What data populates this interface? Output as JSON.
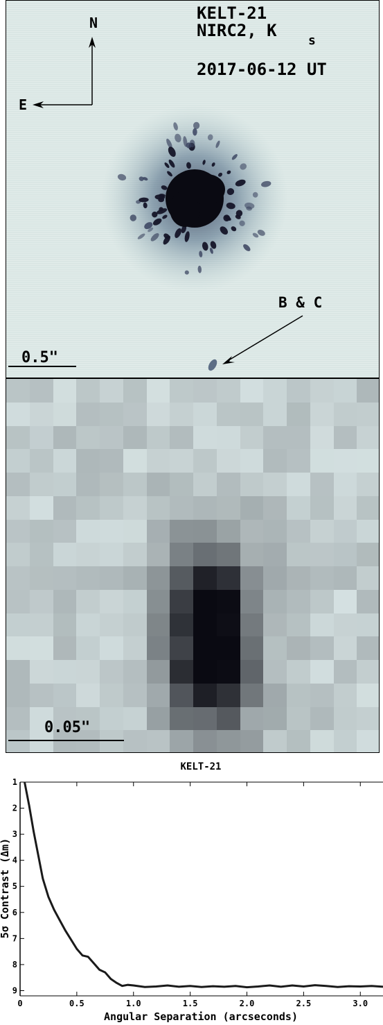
{
  "top_panel": {
    "target": "KELT-21",
    "instrument": "NIRC2, K",
    "filter_subscript": "s",
    "date": "2017-06-12 UT",
    "north": "N",
    "east": "E",
    "companion_label": "B & C",
    "scale_label": "0.5\""
  },
  "bottom_panel": {
    "scale_label": "0.05\""
  },
  "chart_data": {
    "type": "line",
    "title": "KELT-21",
    "xlabel": "Angular Separation (arcseconds)",
    "ylabel": "5σ Contrast (Δm)",
    "xlim": [
      0,
      3.2
    ],
    "ylim": [
      9.2,
      1
    ],
    "y_inverted": true,
    "x_ticks": [
      "0",
      "0.5",
      "1.0",
      "1.5",
      "2.0",
      "2.5",
      "3.0"
    ],
    "y_ticks": [
      "1",
      "2",
      "3",
      "4",
      "5",
      "6",
      "7",
      "8",
      "9"
    ],
    "series": [
      {
        "x": [
          0.04,
          0.08,
          0.12,
          0.16,
          0.2,
          0.25,
          0.3,
          0.35,
          0.4,
          0.45,
          0.5,
          0.55,
          0.6,
          0.65,
          0.7,
          0.75,
          0.8,
          0.85,
          0.9,
          0.95,
          1.0,
          1.1,
          1.2,
          1.3,
          1.4,
          1.5,
          1.6,
          1.7,
          1.8,
          1.9,
          2.0,
          2.1,
          2.2,
          2.3,
          2.4,
          2.5,
          2.6,
          2.7,
          2.8,
          2.9,
          3.0,
          3.1,
          3.2
        ],
        "values": [
          1.0,
          1.9,
          2.9,
          3.8,
          4.7,
          5.4,
          5.9,
          6.3,
          6.7,
          7.05,
          7.4,
          7.65,
          7.7,
          7.95,
          8.2,
          8.3,
          8.55,
          8.7,
          8.82,
          8.78,
          8.8,
          8.86,
          8.84,
          8.8,
          8.85,
          8.82,
          8.86,
          8.83,
          8.85,
          8.82,
          8.87,
          8.84,
          8.8,
          8.85,
          8.8,
          8.84,
          8.79,
          8.82,
          8.86,
          8.83,
          8.84,
          8.82,
          8.85
        ]
      }
    ]
  }
}
